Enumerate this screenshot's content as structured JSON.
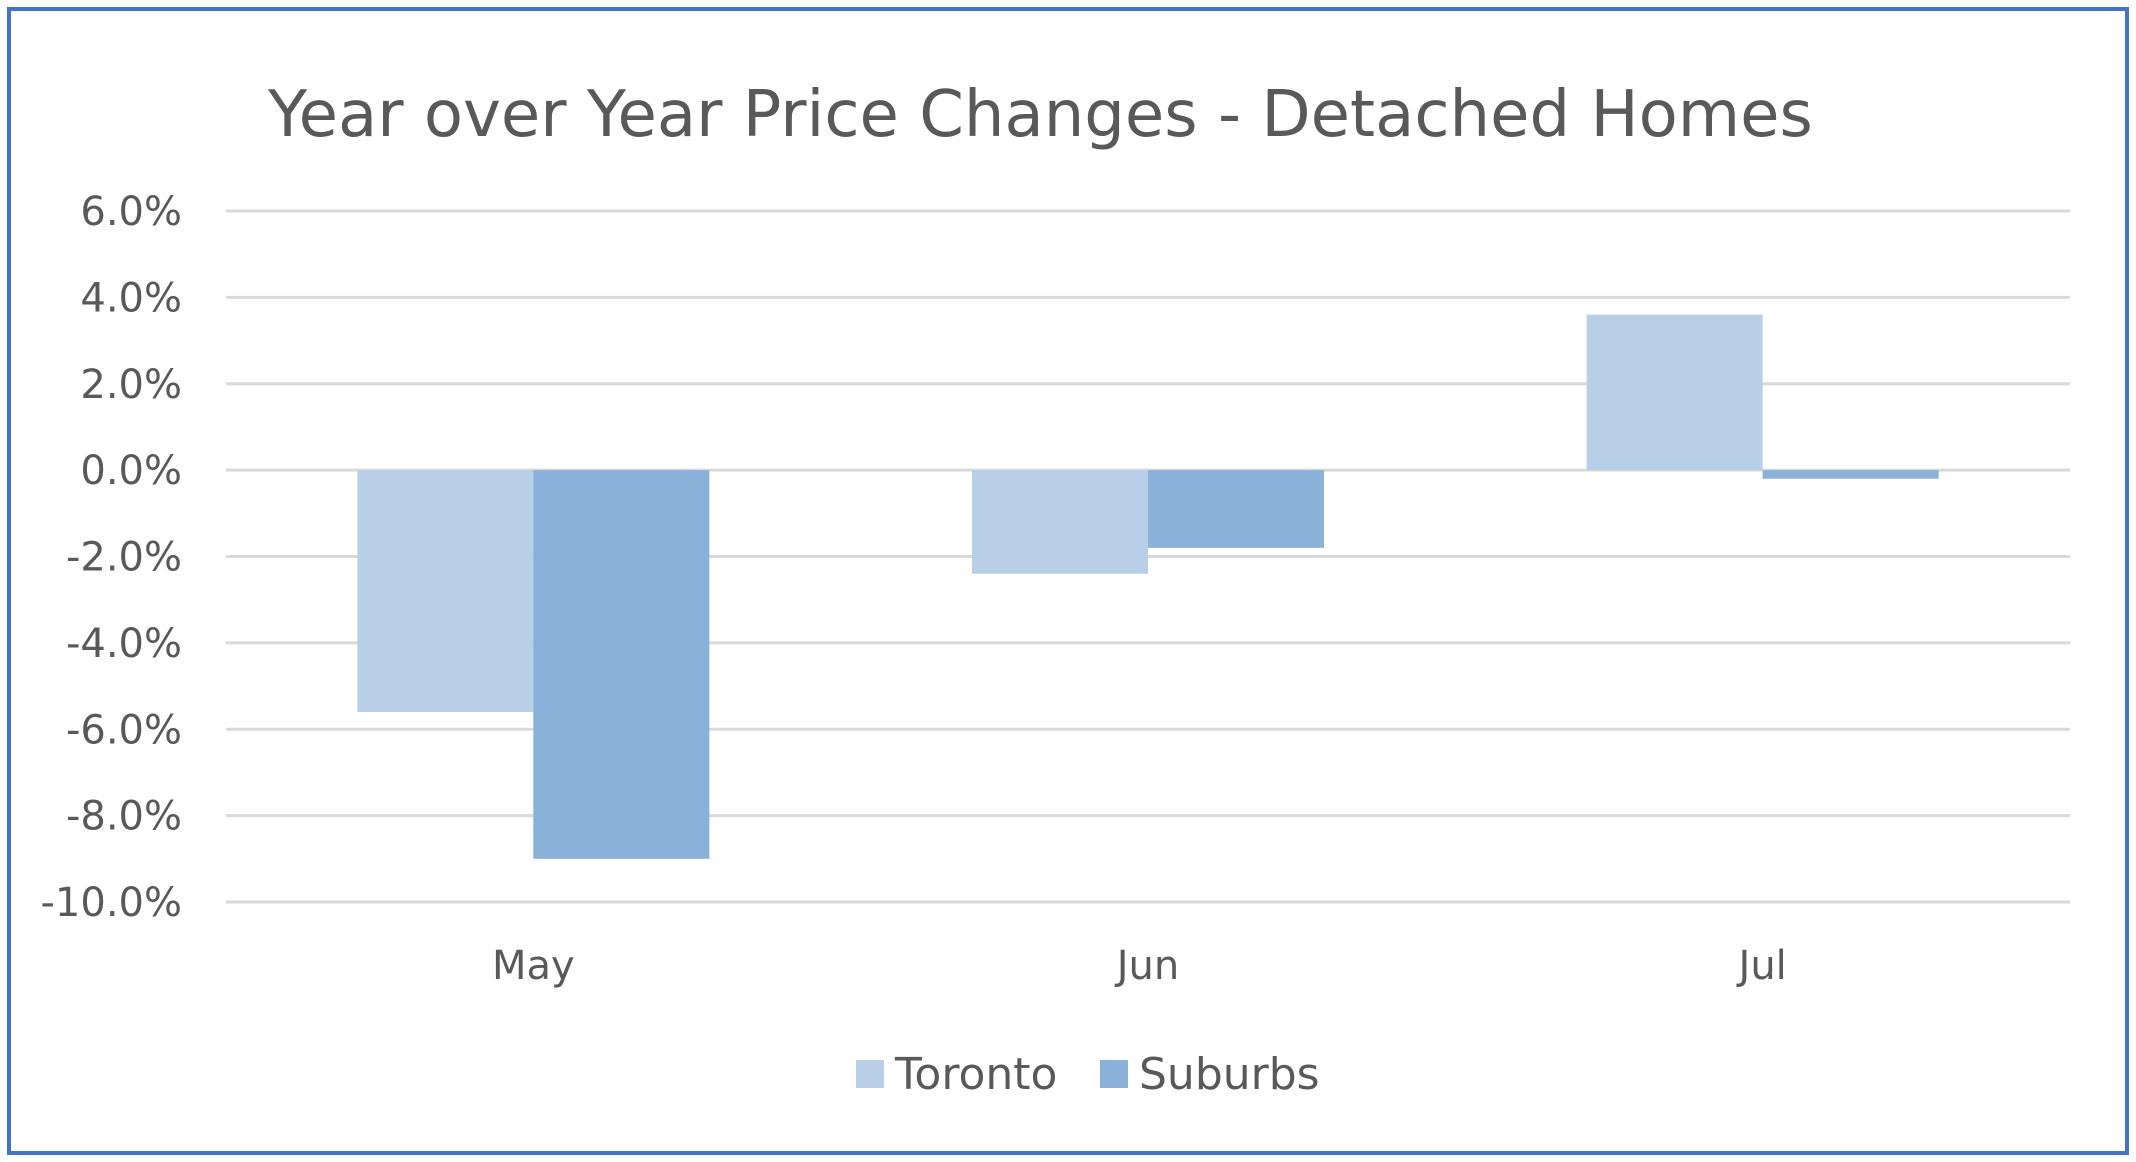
{
  "colors": {
    "border": "#4472c4",
    "grid": "#d9d9d9",
    "text": "#595959",
    "toronto": "#b8cfe8",
    "suburbs": "#8ab1da"
  },
  "chart_data": {
    "type": "bar",
    "title": "Year over Year Price Changes - Detached Homes",
    "xlabel": "",
    "ylabel": "",
    "categories": [
      "May",
      "Jun",
      "Jul"
    ],
    "series": [
      {
        "name": "Toronto",
        "color": "#b8cfe8",
        "values": [
          -5.6,
          -2.4,
          3.6
        ]
      },
      {
        "name": "Suburbs",
        "color": "#8ab1da",
        "values": [
          -9.0,
          -1.8,
          -0.2
        ]
      }
    ],
    "ylim": [
      -10,
      6
    ],
    "yticks": [
      6,
      4,
      2,
      0,
      -2,
      -4,
      -6,
      -8,
      -10
    ],
    "ytick_labels": [
      "6.0%",
      "4.0%",
      "2.0%",
      "0.0%",
      "-2.0%",
      "-4.0%",
      "-6.0%",
      "-8.0%",
      "-10.0%"
    ],
    "grid": true,
    "legend": "bottom"
  }
}
